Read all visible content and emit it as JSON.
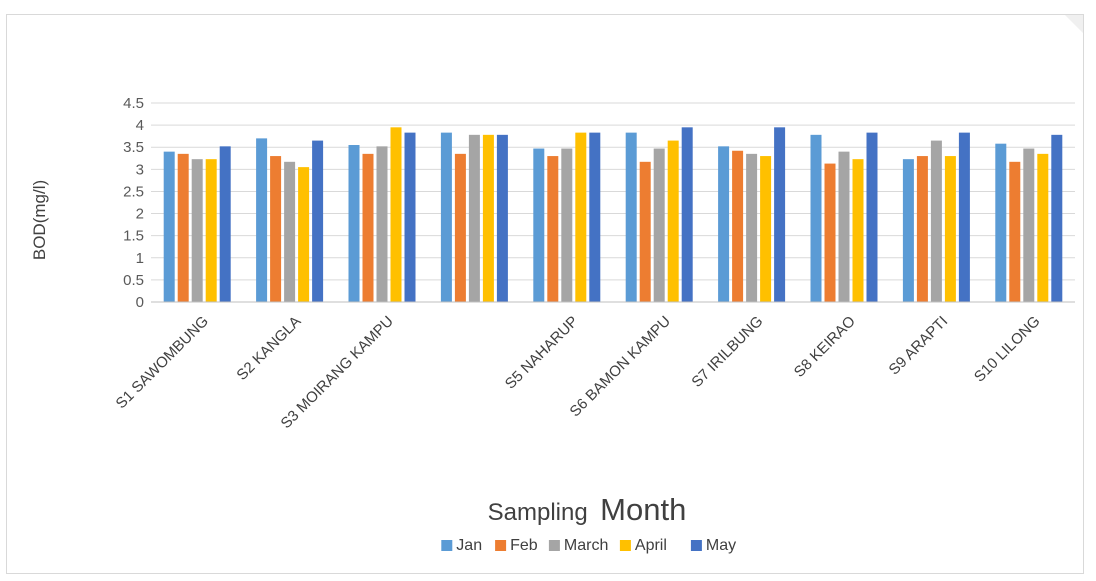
{
  "chart_data": {
    "type": "bar",
    "categories": [
      "S1  SAWOMBUNG",
      "S2   KANGLA",
      "S3  MOIRANG KAMPU",
      "",
      "S5  NAHARUP",
      "S6  BAMON KAMPU",
      "S7  IRILBUNG",
      "S8  KEIRAO",
      "S9  ARAPTI",
      "S10 LILONG"
    ],
    "series": [
      {
        "name": "Jan",
        "color": "#5b9bd5",
        "values": [
          3.4,
          3.7,
          3.55,
          3.83,
          3.47,
          3.83,
          3.52,
          3.78,
          3.23,
          3.58
        ]
      },
      {
        "name": "Feb",
        "color": "#ed7d31",
        "values": [
          3.35,
          3.3,
          3.35,
          3.35,
          3.3,
          3.17,
          3.42,
          3.13,
          3.3,
          3.17
        ]
      },
      {
        "name": "March",
        "color": "#a5a5a5",
        "values": [
          3.23,
          3.17,
          3.52,
          3.78,
          3.47,
          3.47,
          3.35,
          3.4,
          3.65,
          3.47
        ]
      },
      {
        "name": "April",
        "color": "#ffc000",
        "values": [
          3.23,
          3.05,
          3.95,
          3.78,
          3.83,
          3.65,
          3.3,
          3.23,
          3.3,
          3.35
        ]
      },
      {
        "name": "May",
        "color": "#4472c4",
        "values": [
          3.52,
          3.65,
          3.83,
          3.78,
          3.83,
          3.95,
          3.95,
          3.83,
          3.83,
          3.78
        ]
      }
    ],
    "ylabel": "BOD(mg/l)",
    "xlabel_parts": [
      "Sampling",
      "Month"
    ],
    "ylim": [
      0,
      4.5
    ],
    "yticks": [
      "0",
      "0.5",
      "1",
      "1.5",
      "2",
      "2.5",
      "3",
      "3.5",
      "4",
      "4.5"
    ],
    "grid": true,
    "legend": "bottom"
  }
}
